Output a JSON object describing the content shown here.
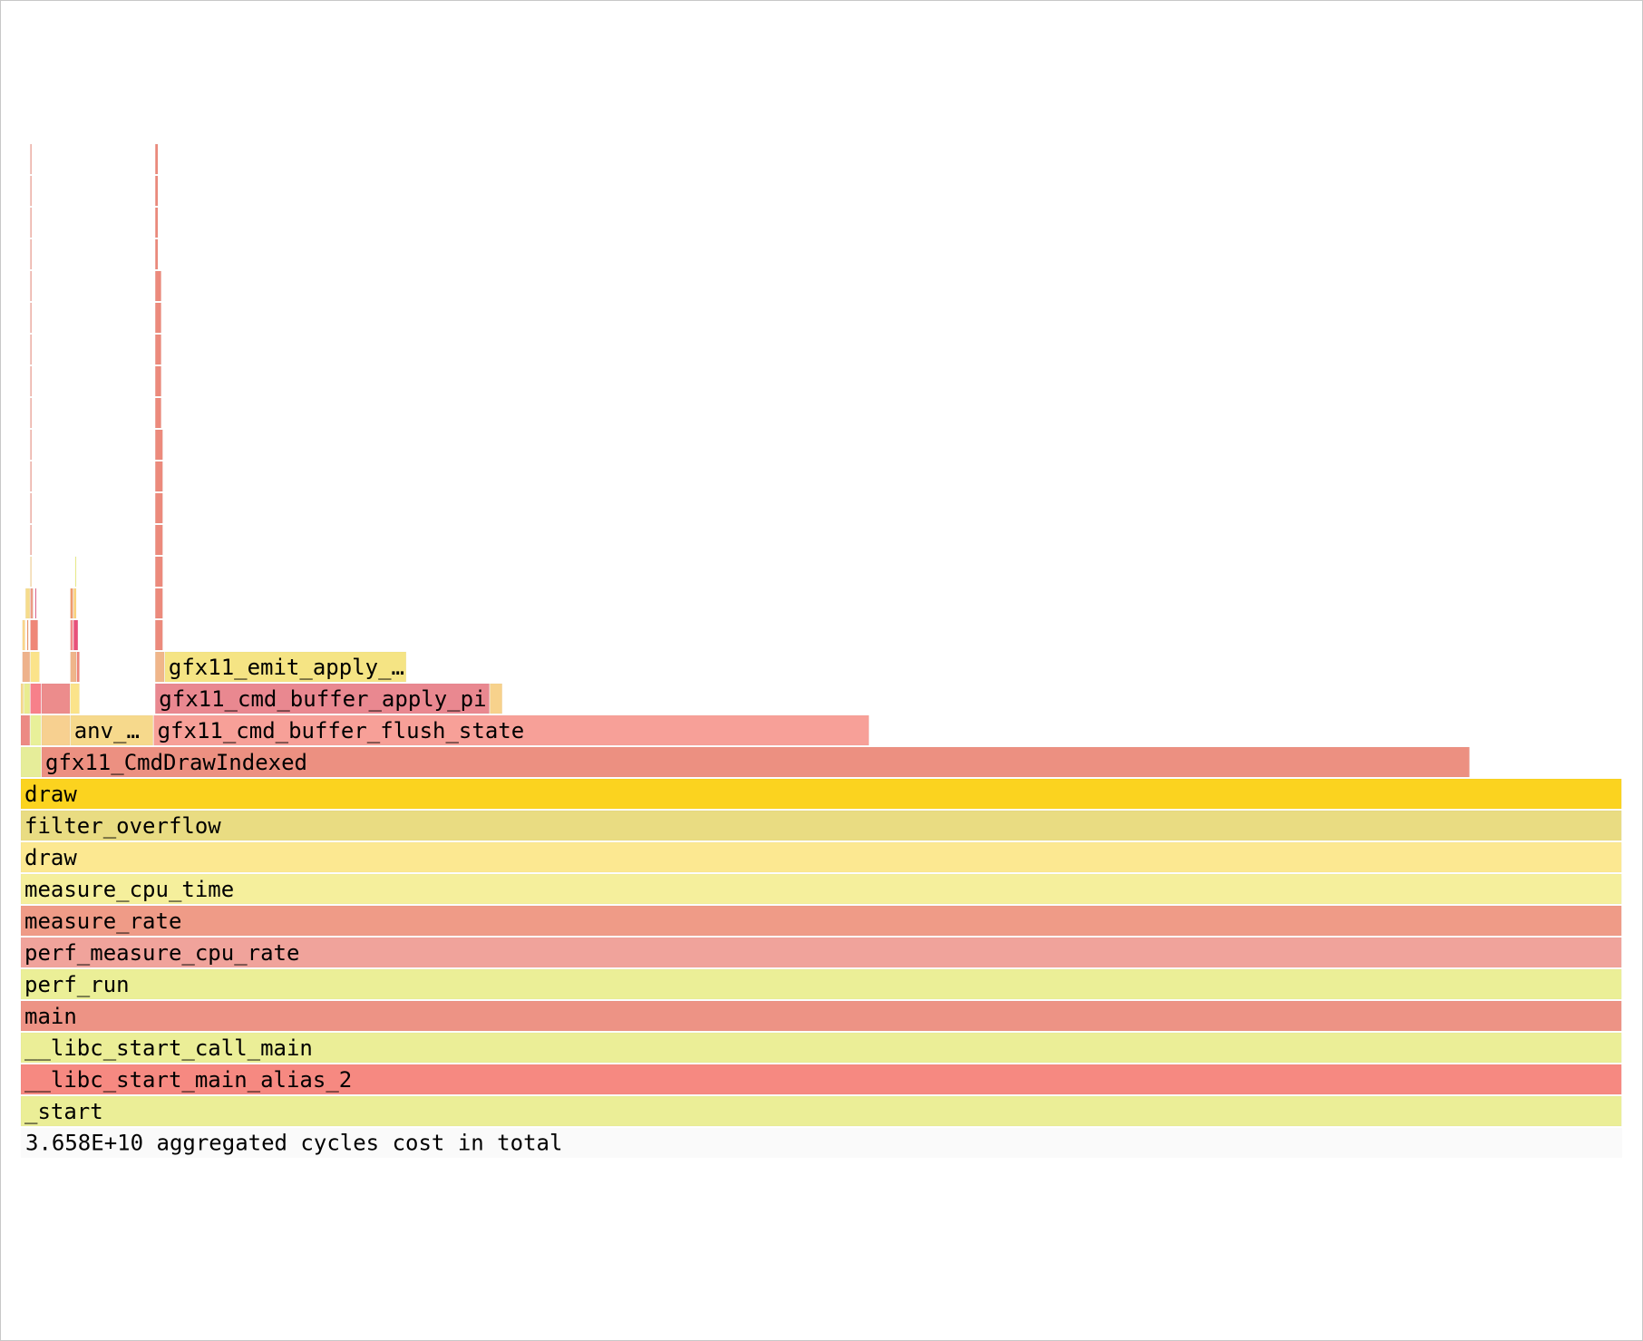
{
  "chart_data": {
    "type": "flamegraph",
    "unit": "cycles",
    "total_label": "3.658E+10 aggregated cycles cost in total",
    "total_span": 1000,
    "frames": [
      {
        "name": "_start",
        "depth": 0,
        "start": 0,
        "value": 1000,
        "color": "#ebee97"
      },
      {
        "name": "__libc_start_main_alias_2",
        "depth": 1,
        "start": 0,
        "value": 1000,
        "color": "#f68981"
      },
      {
        "name": "__libc_start_call_main",
        "depth": 2,
        "start": 0,
        "value": 1000,
        "color": "#ebee97"
      },
      {
        "name": "main",
        "depth": 3,
        "start": 0,
        "value": 1000,
        "color": "#ed9385"
      },
      {
        "name": "perf_run",
        "depth": 4,
        "start": 0,
        "value": 1000,
        "color": "#ebef97"
      },
      {
        "name": "perf_measure_cpu_rate",
        "depth": 5,
        "start": 0,
        "value": 1000,
        "color": "#f0a39b"
      },
      {
        "name": "measure_rate",
        "depth": 6,
        "start": 0,
        "value": 1000,
        "color": "#ef9b87"
      },
      {
        "name": "measure_cpu_time",
        "depth": 7,
        "start": 0,
        "value": 1000,
        "color": "#f5ef9c"
      },
      {
        "name": "draw",
        "depth": 8,
        "start": 0,
        "value": 1000,
        "color": "#fce891"
      },
      {
        "name": "filter_overflow",
        "depth": 9,
        "start": 0,
        "value": 1000,
        "color": "#e9dc82"
      },
      {
        "name": "draw",
        "depth": 10,
        "start": 0,
        "value": 1000,
        "color": "#fbd31f"
      },
      {
        "name": "",
        "depth": 11,
        "start": 0,
        "value": 13,
        "color": "#e6ed99"
      },
      {
        "name": "gfx11_CmdDrawIndexed",
        "depth": 11,
        "start": 13,
        "value": 892,
        "color": "#ec9081"
      },
      {
        "name": "",
        "depth": 12,
        "start": 0,
        "value": 6,
        "color": "#ec8a84"
      },
      {
        "name": "",
        "depth": 12,
        "start": 6,
        "value": 7,
        "color": "#e8f099"
      },
      {
        "name": "",
        "depth": 12,
        "start": 13,
        "value": 18,
        "color": "#f7d090"
      },
      {
        "name": "anv_…",
        "depth": 12,
        "start": 31,
        "value": 52,
        "color": "#f6d98c"
      },
      {
        "name": "gfx11_cmd_buffer_flush_state",
        "depth": 12,
        "start": 83,
        "value": 447,
        "color": "#f7a098"
      },
      {
        "name": "",
        "depth": 13,
        "start": 0,
        "value": 2,
        "color": "#f6d98c"
      },
      {
        "name": "",
        "depth": 13,
        "start": 2,
        "value": 4,
        "color": "#e9ec90"
      },
      {
        "name": "",
        "depth": 13,
        "start": 6,
        "value": 7,
        "color": "#f7808a"
      },
      {
        "name": "",
        "depth": 13,
        "start": 13,
        "value": 18,
        "color": "#ec8c8c"
      },
      {
        "name": "",
        "depth": 13,
        "start": 31,
        "value": 6,
        "color": "#fbe38a"
      },
      {
        "name": "gfx11_cmd_buffer_apply_pi",
        "depth": 13,
        "start": 84,
        "value": 209,
        "color": "#e98890"
      },
      {
        "name": "",
        "depth": 13,
        "start": 293,
        "value": 8,
        "color": "#f7d28c"
      },
      {
        "name": "",
        "depth": 14,
        "start": 1,
        "value": 5,
        "color": "#eeb28c"
      },
      {
        "name": "",
        "depth": 14,
        "start": 6,
        "value": 6,
        "color": "#fbe38a"
      },
      {
        "name": "",
        "depth": 14,
        "start": 31,
        "value": 4,
        "color": "#efb58a"
      },
      {
        "name": "",
        "depth": 14,
        "start": 35,
        "value": 2,
        "color": "#ee8478"
      },
      {
        "name": "",
        "depth": 14,
        "start": 84,
        "value": 6,
        "color": "#f0b68a"
      },
      {
        "name": "gfx11_emit_apply_…",
        "depth": 14,
        "start": 90,
        "value": 151,
        "color": "#f5e484"
      },
      {
        "name": "",
        "depth": 15,
        "start": 1,
        "value": 2,
        "color": "#fbd68a"
      },
      {
        "name": "",
        "depth": 15,
        "start": 4,
        "value": 1,
        "color": "#ec8c5c"
      },
      {
        "name": "",
        "depth": 15,
        "start": 6,
        "value": 5,
        "color": "#ef8778"
      },
      {
        "name": "",
        "depth": 15,
        "start": 31,
        "value": 2,
        "color": "#f28a8a"
      },
      {
        "name": "",
        "depth": 15,
        "start": 33,
        "value": 3,
        "color": "#e8507a"
      },
      {
        "name": "",
        "depth": 15,
        "start": 84,
        "value": 5,
        "color": "#ec8a7c"
      },
      {
        "name": "",
        "depth": 16,
        "start": 3,
        "value": 3,
        "color": "#f6dc8c"
      },
      {
        "name": "",
        "depth": 16,
        "start": 6,
        "value": 2,
        "color": "#ec9a84"
      },
      {
        "name": "",
        "depth": 16,
        "start": 9,
        "value": 1,
        "color": "#e0608a"
      },
      {
        "name": "",
        "depth": 16,
        "start": 31,
        "value": 2,
        "color": "#ef9a6c"
      },
      {
        "name": "",
        "depth": 16,
        "start": 33,
        "value": 2,
        "color": "#fbd47e"
      },
      {
        "name": "",
        "depth": 16,
        "start": 84,
        "value": 5,
        "color": "#ec8a7c"
      },
      {
        "name": "",
        "depth": 17,
        "start": 6,
        "value": 1,
        "color": "#f6d08c"
      },
      {
        "name": "",
        "depth": 17,
        "start": 34,
        "value": 1,
        "color": "#eef090"
      },
      {
        "name": "",
        "depth": 17,
        "start": 84,
        "value": 5,
        "color": "#ec8a7c"
      },
      {
        "name": "",
        "depth": 18,
        "start": 6,
        "value": 1,
        "color": "#ec8a7c"
      },
      {
        "name": "",
        "depth": 18,
        "start": 84,
        "value": 5,
        "color": "#ec8a7c"
      },
      {
        "name": "",
        "depth": 19,
        "start": 6,
        "value": 1,
        "color": "#ec8a7c"
      },
      {
        "name": "",
        "depth": 19,
        "start": 84,
        "value": 5,
        "color": "#ec8a7c"
      },
      {
        "name": "",
        "depth": 20,
        "start": 6,
        "value": 1,
        "color": "#ec8a7c"
      },
      {
        "name": "",
        "depth": 20,
        "start": 84,
        "value": 5,
        "color": "#ec8a7c"
      },
      {
        "name": "",
        "depth": 21,
        "start": 6,
        "value": 1,
        "color": "#ec8a7c"
      },
      {
        "name": "",
        "depth": 21,
        "start": 84,
        "value": 5,
        "color": "#ec8a7c"
      },
      {
        "name": "",
        "depth": 22,
        "start": 6,
        "value": 1,
        "color": "#ec8a7c"
      },
      {
        "name": "",
        "depth": 22,
        "start": 84,
        "value": 4,
        "color": "#ec8a7c"
      },
      {
        "name": "",
        "depth": 23,
        "start": 6,
        "value": 1,
        "color": "#ec8a7c"
      },
      {
        "name": "",
        "depth": 23,
        "start": 84,
        "value": 4,
        "color": "#ec8a7c"
      },
      {
        "name": "",
        "depth": 24,
        "start": 6,
        "value": 1,
        "color": "#ec8a7c"
      },
      {
        "name": "",
        "depth": 24,
        "start": 84,
        "value": 4,
        "color": "#ec8a7c"
      },
      {
        "name": "",
        "depth": 25,
        "start": 6,
        "value": 1,
        "color": "#ec8a7c"
      },
      {
        "name": "",
        "depth": 25,
        "start": 84,
        "value": 4,
        "color": "#ec8a7c"
      },
      {
        "name": "",
        "depth": 26,
        "start": 6,
        "value": 1,
        "color": "#ec8a7c"
      },
      {
        "name": "",
        "depth": 26,
        "start": 84,
        "value": 4,
        "color": "#ec8a7c"
      },
      {
        "name": "",
        "depth": 27,
        "start": 6,
        "value": 1,
        "color": "#ec8a7c"
      },
      {
        "name": "",
        "depth": 27,
        "start": 84,
        "value": 2,
        "color": "#ec8a7c"
      },
      {
        "name": "",
        "depth": 28,
        "start": 6,
        "value": 1,
        "color": "#ec8a7c"
      },
      {
        "name": "",
        "depth": 28,
        "start": 84,
        "value": 2,
        "color": "#ec8a7c"
      },
      {
        "name": "",
        "depth": 29,
        "start": 6,
        "value": 1,
        "color": "#ec8a7c"
      },
      {
        "name": "",
        "depth": 29,
        "start": 84,
        "value": 2,
        "color": "#ec8a7c"
      },
      {
        "name": "",
        "depth": 30,
        "start": 6,
        "value": 1,
        "color": "#ec8a7c"
      },
      {
        "name": "",
        "depth": 30,
        "start": 84,
        "value": 2,
        "color": "#ec8a7c"
      }
    ]
  }
}
